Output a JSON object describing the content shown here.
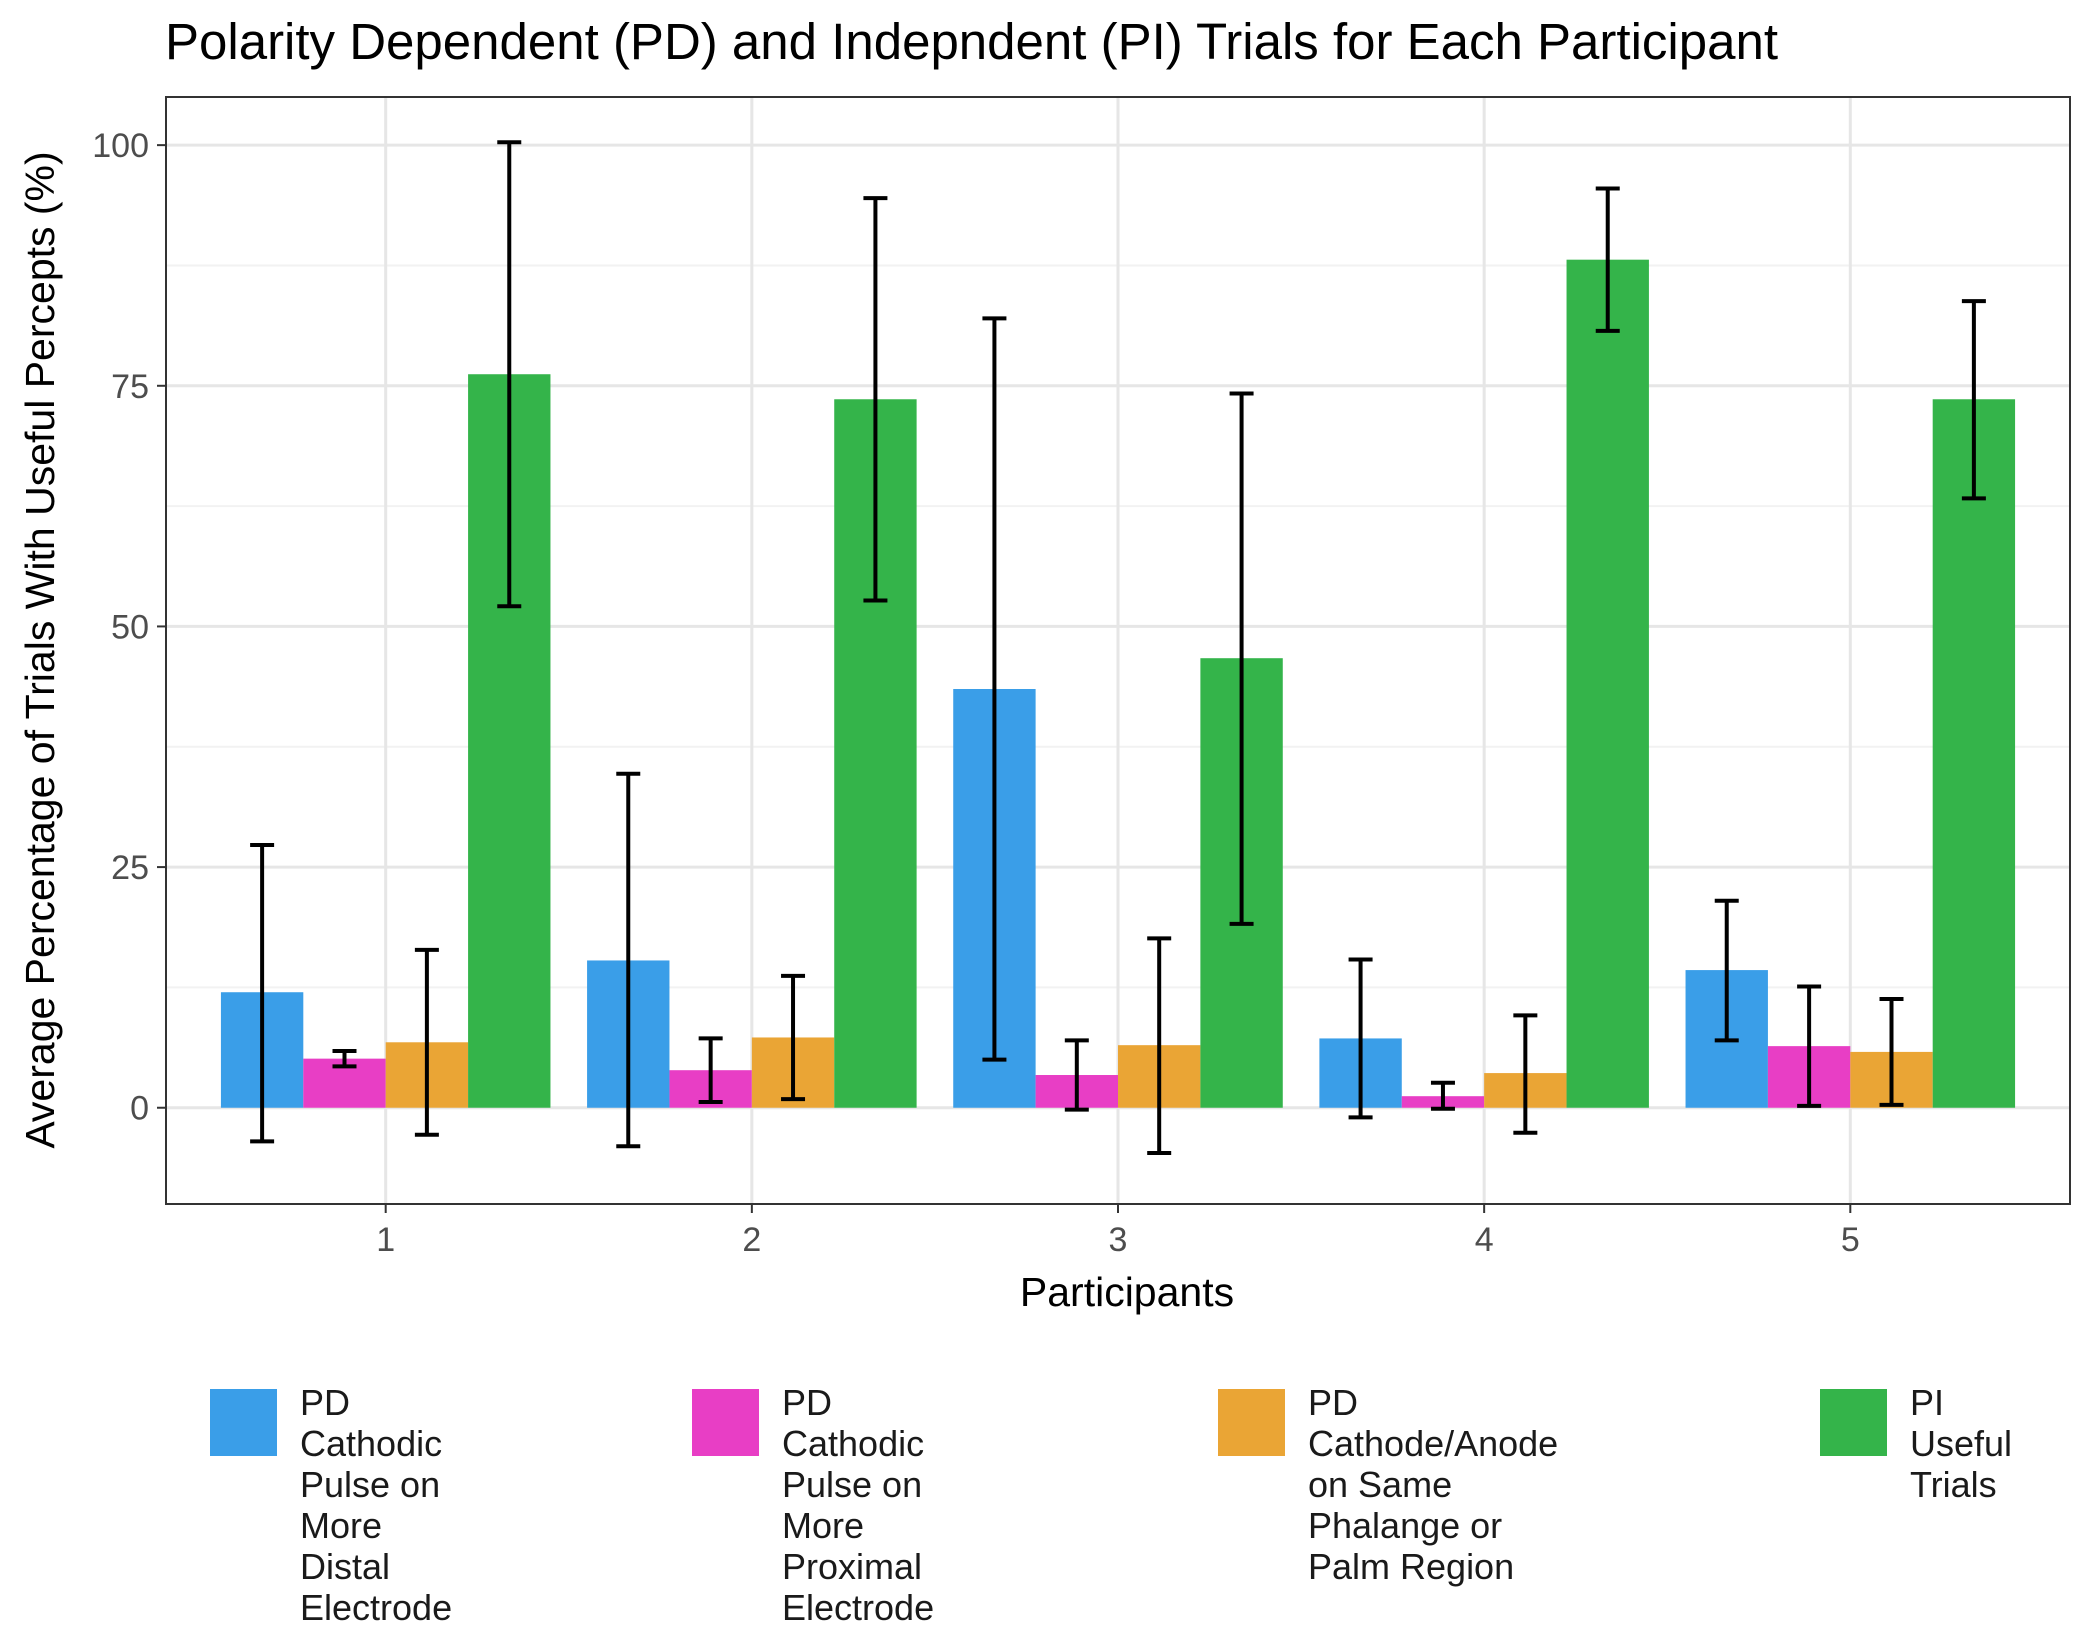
{
  "chart_data": {
    "type": "bar",
    "title": "Polarity Dependent (PD) and Indepndent (PI) Trials for Each Participant",
    "xlabel": "Participants",
    "ylabel": "Average Percentage of Trials With Useful Percepts (%)",
    "categories": [
      "1",
      "2",
      "3",
      "4",
      "5"
    ],
    "y_ticks": [
      0,
      25,
      50,
      75,
      100
    ],
    "ylim": [
      -10,
      105
    ],
    "grid": true,
    "legend_position": "bottom",
    "error_bars": true,
    "series": [
      {
        "name": "PD Cathodic Pulse on\nMore Distal Electrode",
        "color": "#3a9ee8",
        "values": [
          12,
          15.3,
          43.5,
          7.2,
          14.3
        ],
        "error_low": [
          -3.5,
          -4,
          5,
          -1,
          7
        ],
        "error_high": [
          27.3,
          34.7,
          82,
          15.4,
          21.5
        ]
      },
      {
        "name": "PD Cathodic Pulse on\nMore Proximal Electrode",
        "color": "#e83ec5",
        "values": [
          5.1,
          3.9,
          3.4,
          1.2,
          6.4
        ],
        "error_low": [
          4.3,
          0.6,
          -0.2,
          -0.1,
          0.2
        ],
        "error_high": [
          5.9,
          7.2,
          7,
          2.6,
          12.6
        ]
      },
      {
        "name": "PD Cathode/Anode on Same\nPhalange or Palm Region",
        "color": "#eaa535",
        "values": [
          6.8,
          7.3,
          6.5,
          3.6,
          5.8
        ],
        "error_low": [
          -2.8,
          0.9,
          -4.7,
          -2.6,
          0.3
        ],
        "error_high": [
          16.4,
          13.7,
          17.6,
          9.6,
          11.3
        ]
      },
      {
        "name": "PI Useful\nTrials",
        "color": "#34b44a",
        "values": [
          76.2,
          73.6,
          46.7,
          88.1,
          73.6
        ],
        "error_low": [
          52.1,
          52.7,
          19.1,
          80.7,
          63.3
        ],
        "error_high": [
          100.3,
          94.5,
          74.2,
          95.5,
          83.8
        ]
      }
    ]
  }
}
